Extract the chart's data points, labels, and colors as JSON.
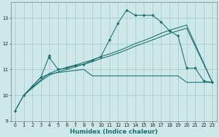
{
  "xlabel": "Humidex (Indice chaleur)",
  "bg_color": "#cce8e8",
  "grid_color": "#aacccc",
  "line_color": "#1a6e6e",
  "xlim": [
    -0.5,
    23.5
  ],
  "ylim": [
    9,
    13.6
  ],
  "yticks": [
    9,
    10,
    11,
    12,
    13
  ],
  "xticks": [
    0,
    1,
    2,
    3,
    4,
    5,
    6,
    7,
    8,
    9,
    10,
    11,
    12,
    13,
    14,
    15,
    16,
    17,
    18,
    19,
    20,
    21,
    22,
    23
  ],
  "main_x": [
    0,
    1,
    2,
    3,
    4,
    4,
    5,
    6,
    7,
    8,
    9,
    10,
    11,
    12,
    13,
    14,
    15,
    16,
    17,
    18,
    19,
    20,
    21,
    22,
    23
  ],
  "main_y": [
    9.4,
    10.0,
    10.35,
    10.7,
    11.55,
    11.45,
    11.0,
    11.05,
    11.15,
    11.2,
    11.35,
    11.5,
    12.15,
    12.8,
    13.3,
    13.1,
    13.1,
    13.1,
    12.85,
    12.5,
    12.3,
    11.05,
    11.05,
    10.55,
    10.5
  ],
  "flat_x": [
    0,
    1,
    2,
    3,
    4,
    5,
    6,
    7,
    8,
    9,
    10,
    11,
    12,
    13,
    14,
    15,
    16,
    17,
    18,
    19,
    20,
    21,
    22,
    23
  ],
  "flat_y": [
    9.4,
    10.0,
    10.35,
    10.7,
    10.82,
    10.88,
    10.92,
    10.96,
    11.0,
    10.75,
    10.75,
    10.75,
    10.75,
    10.75,
    10.75,
    10.75,
    10.75,
    10.75,
    10.75,
    10.75,
    10.5,
    10.5,
    10.5,
    10.5
  ],
  "diag1_x": [
    1,
    2,
    3,
    4,
    5,
    6,
    7,
    8,
    9,
    10,
    11,
    12,
    13,
    14,
    15,
    16,
    17,
    18,
    19,
    20,
    23
  ],
  "diag1_y": [
    10.0,
    10.3,
    10.6,
    10.85,
    10.98,
    11.08,
    11.17,
    11.27,
    11.37,
    11.5,
    11.6,
    11.72,
    11.85,
    12.0,
    12.12,
    12.25,
    12.4,
    12.52,
    12.62,
    12.72,
    10.5
  ],
  "diag2_x": [
    1,
    2,
    3,
    4,
    5,
    6,
    7,
    8,
    9,
    10,
    11,
    12,
    13,
    14,
    15,
    16,
    17,
    18,
    19,
    20,
    23
  ],
  "diag2_y": [
    10.0,
    10.28,
    10.55,
    10.78,
    10.9,
    11.0,
    11.1,
    11.2,
    11.3,
    11.42,
    11.52,
    11.63,
    11.76,
    11.9,
    12.02,
    12.14,
    12.27,
    12.4,
    12.5,
    12.6,
    10.5
  ]
}
